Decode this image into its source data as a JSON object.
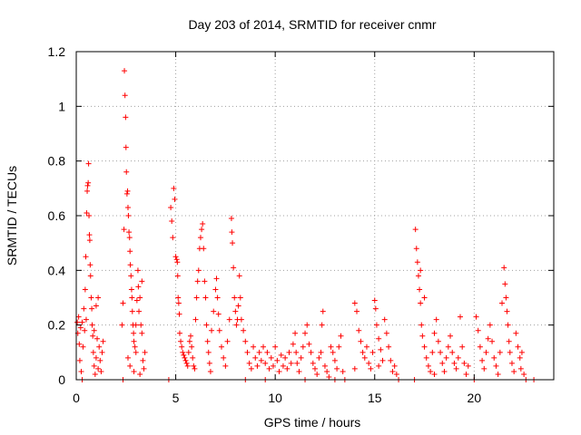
{
  "chart_data": {
    "type": "scatter",
    "title": "Day 203 of 2014, SRMTID for receiver cnmr",
    "xlabel": "GPS time / hours",
    "ylabel": "SRMTID / TECUs",
    "xlim": [
      0,
      24
    ],
    "ylim": [
      0,
      1.2
    ],
    "xticks": [
      0,
      5,
      10,
      15,
      20
    ],
    "xtick_labels": [
      "0",
      "5",
      "10",
      "15",
      "20"
    ],
    "yticks": [
      0,
      0.2,
      0.4,
      0.6,
      0.8,
      1.0,
      1.2
    ],
    "ytick_labels": [
      "0",
      "0.2",
      "0.4",
      "0.6",
      "0.8",
      "1",
      "1.2"
    ],
    "grid": true,
    "marker": "+",
    "marker_color": "#ff0000",
    "series": [
      {
        "name": "SRMTID",
        "points": [
          [
            0.05,
            0.21
          ],
          [
            0.08,
            0.17
          ],
          [
            0.12,
            0.23
          ],
          [
            0.15,
            0.13
          ],
          [
            0.18,
            0.07
          ],
          [
            0.22,
            0.19
          ],
          [
            0.25,
            0.03
          ],
          [
            0.3,
            0.21
          ],
          [
            0.34,
            0.12
          ],
          [
            0.38,
            0.26
          ],
          [
            0.42,
            0.18
          ],
          [
            0.45,
            0.33
          ],
          [
            0.48,
            0.45
          ],
          [
            0.5,
            0.22
          ],
          [
            0.52,
            0.61
          ],
          [
            0.55,
            0.69
          ],
          [
            0.57,
            0.71
          ],
          [
            0.6,
            0.72
          ],
          [
            0.62,
            0.79
          ],
          [
            0.64,
            0.6
          ],
          [
            0.66,
            0.53
          ],
          [
            0.68,
            0.51
          ],
          [
            0.7,
            0.42
          ],
          [
            0.72,
            0.38
          ],
          [
            0.75,
            0.3
          ],
          [
            0.78,
            0.26
          ],
          [
            0.8,
            0.2
          ],
          [
            0.83,
            0.16
          ],
          [
            0.86,
            0.1
          ],
          [
            0.9,
            0.05
          ],
          [
            0.95,
            0.02
          ],
          [
            1.0,
            0.08
          ],
          [
            1.05,
            0.15
          ],
          [
            1.1,
            0.04
          ],
          [
            1.15,
            0.12
          ],
          [
            1.2,
            0.07
          ],
          [
            1.25,
            0.03
          ],
          [
            1.3,
            0.1
          ],
          [
            1.35,
            0.14
          ],
          [
            1.0,
            0.27
          ],
          [
            1.1,
            0.3
          ],
          [
            0.9,
            0.18
          ],
          [
            0.3,
            0.0
          ],
          [
            2.35,
            0.0
          ],
          [
            2.3,
            0.2
          ],
          [
            2.35,
            0.28
          ],
          [
            2.4,
            0.55
          ],
          [
            2.42,
            1.13
          ],
          [
            2.45,
            1.04
          ],
          [
            2.48,
            0.96
          ],
          [
            2.5,
            0.85
          ],
          [
            2.52,
            0.76
          ],
          [
            2.55,
            0.68
          ],
          [
            2.58,
            0.69
          ],
          [
            2.6,
            0.63
          ],
          [
            2.62,
            0.6
          ],
          [
            2.65,
            0.54
          ],
          [
            2.68,
            0.52
          ],
          [
            2.7,
            0.47
          ],
          [
            2.72,
            0.42
          ],
          [
            2.75,
            0.38
          ],
          [
            2.78,
            0.33
          ],
          [
            2.8,
            0.3
          ],
          [
            2.82,
            0.25
          ],
          [
            2.85,
            0.2
          ],
          [
            2.88,
            0.17
          ],
          [
            2.9,
            0.14
          ],
          [
            2.95,
            0.12
          ],
          [
            3.0,
            0.1
          ],
          [
            3.05,
            0.29
          ],
          [
            3.1,
            0.4
          ],
          [
            3.12,
            0.34
          ],
          [
            3.15,
            0.25
          ],
          [
            3.2,
            0.3
          ],
          [
            3.25,
            0.2
          ],
          [
            3.3,
            0.17
          ],
          [
            3.35,
            0.07
          ],
          [
            3.4,
            0.04
          ],
          [
            3.45,
            0.1
          ],
          [
            2.6,
            0.08
          ],
          [
            2.7,
            0.05
          ],
          [
            2.9,
            0.03
          ],
          [
            3.2,
            0.02
          ],
          [
            3.3,
            0.36
          ],
          [
            3.0,
            0.2
          ],
          [
            4.65,
            0.0
          ],
          [
            4.75,
            0.63
          ],
          [
            4.8,
            0.58
          ],
          [
            4.85,
            0.52
          ],
          [
            4.9,
            0.7
          ],
          [
            4.95,
            0.66
          ],
          [
            5.0,
            0.45
          ],
          [
            5.05,
            0.44
          ],
          [
            5.08,
            0.43
          ],
          [
            5.1,
            0.38
          ],
          [
            5.12,
            0.3
          ],
          [
            5.15,
            0.28
          ],
          [
            5.18,
            0.24
          ],
          [
            5.2,
            0.17
          ],
          [
            5.25,
            0.14
          ],
          [
            5.3,
            0.12
          ],
          [
            5.35,
            0.1
          ],
          [
            5.4,
            0.09
          ],
          [
            5.45,
            0.08
          ],
          [
            5.5,
            0.07
          ],
          [
            5.55,
            0.06
          ],
          [
            5.6,
            0.05
          ],
          [
            5.65,
            0.1
          ],
          [
            5.7,
            0.14
          ],
          [
            5.75,
            0.16
          ],
          [
            5.8,
            0.12
          ],
          [
            5.85,
            0.08
          ],
          [
            5.9,
            0.05
          ],
          [
            5.95,
            0.04
          ],
          [
            6.0,
            0.22
          ],
          [
            6.05,
            0.3
          ],
          [
            6.1,
            0.36
          ],
          [
            6.15,
            0.4
          ],
          [
            6.2,
            0.48
          ],
          [
            6.25,
            0.52
          ],
          [
            6.3,
            0.55
          ],
          [
            6.35,
            0.57
          ],
          [
            6.4,
            0.48
          ],
          [
            6.45,
            0.36
          ],
          [
            6.5,
            0.3
          ],
          [
            6.55,
            0.2
          ],
          [
            6.6,
            0.14
          ],
          [
            6.65,
            0.1
          ],
          [
            6.7,
            0.06
          ],
          [
            6.75,
            0.03
          ],
          [
            6.8,
            0.18
          ],
          [
            6.9,
            0.25
          ],
          [
            7.0,
            0.33
          ],
          [
            7.05,
            0.37
          ],
          [
            7.1,
            0.3
          ],
          [
            7.15,
            0.24
          ],
          [
            7.2,
            0.18
          ],
          [
            7.3,
            0.12
          ],
          [
            7.4,
            0.08
          ],
          [
            7.5,
            0.05
          ],
          [
            7.6,
            0.14
          ],
          [
            7.7,
            0.22
          ],
          [
            7.8,
            0.59
          ],
          [
            7.82,
            0.54
          ],
          [
            7.85,
            0.5
          ],
          [
            7.9,
            0.41
          ],
          [
            7.95,
            0.3
          ],
          [
            8.0,
            0.25
          ],
          [
            8.05,
            0.2
          ],
          [
            8.1,
            0.22
          ],
          [
            8.15,
            0.27
          ],
          [
            8.2,
            0.38
          ],
          [
            8.25,
            0.3
          ],
          [
            8.3,
            0.22
          ],
          [
            8.4,
            0.18
          ],
          [
            8.5,
            0.14
          ],
          [
            8.6,
            0.1
          ],
          [
            8.7,
            0.06
          ],
          [
            8.8,
            0.04
          ],
          [
            8.9,
            0.12
          ],
          [
            9.0,
            0.08
          ],
          [
            9.1,
            0.05
          ],
          [
            9.2,
            0.1
          ],
          [
            9.3,
            0.07
          ],
          [
            9.4,
            0.12
          ],
          [
            9.5,
            0.06
          ],
          [
            9.6,
            0.1
          ],
          [
            9.7,
            0.04
          ],
          [
            9.8,
            0.08
          ],
          [
            9.9,
            0.05
          ],
          [
            10.0,
            0.12
          ],
          [
            10.1,
            0.07
          ],
          [
            10.2,
            0.03
          ],
          [
            10.3,
            0.09
          ],
          [
            10.4,
            0.05
          ],
          [
            10.5,
            0.08
          ],
          [
            10.6,
            0.04
          ],
          [
            10.7,
            0.1
          ],
          [
            10.8,
            0.06
          ],
          [
            10.9,
            0.13
          ],
          [
            11.0,
            0.17
          ],
          [
            11.05,
            0.1
          ],
          [
            11.1,
            0.06
          ],
          [
            11.2,
            0.03
          ],
          [
            11.3,
            0.08
          ],
          [
            11.4,
            0.12
          ],
          [
            11.5,
            0.17
          ],
          [
            11.6,
            0.2
          ],
          [
            11.7,
            0.13
          ],
          [
            11.8,
            0.1
          ],
          [
            11.9,
            0.06
          ],
          [
            12.0,
            0.04
          ],
          [
            12.1,
            0.02
          ],
          [
            12.2,
            0.08
          ],
          [
            12.3,
            0.1
          ],
          [
            12.35,
            0.2
          ],
          [
            12.4,
            0.25
          ],
          [
            12.5,
            0.05
          ],
          [
            12.6,
            0.03
          ],
          [
            12.7,
            0.01
          ],
          [
            12.8,
            0.12
          ],
          [
            12.9,
            0.1
          ],
          [
            13.0,
            0.07
          ],
          [
            13.1,
            0.04
          ],
          [
            13.2,
            0.12
          ],
          [
            13.3,
            0.16
          ],
          [
            13.4,
            0.03
          ],
          [
            13.5,
            0.0
          ],
          [
            14.0,
            0.28
          ],
          [
            14.1,
            0.25
          ],
          [
            14.2,
            0.18
          ],
          [
            14.3,
            0.14
          ],
          [
            14.4,
            0.1
          ],
          [
            14.5,
            0.08
          ],
          [
            14.6,
            0.12
          ],
          [
            14.7,
            0.06
          ],
          [
            14.8,
            0.04
          ],
          [
            14.9,
            0.1
          ],
          [
            15.0,
            0.29
          ],
          [
            15.05,
            0.26
          ],
          [
            15.1,
            0.2
          ],
          [
            15.2,
            0.15
          ],
          [
            15.3,
            0.11
          ],
          [
            15.4,
            0.07
          ],
          [
            15.5,
            0.22
          ],
          [
            15.6,
            0.17
          ],
          [
            15.7,
            0.12
          ],
          [
            15.8,
            0.07
          ],
          [
            15.9,
            0.03
          ],
          [
            16.0,
            0.05
          ],
          [
            16.1,
            0.02
          ],
          [
            16.2,
            0.0
          ],
          [
            8.5,
            0.0
          ],
          [
            9.5,
            0.0
          ],
          [
            11.5,
            0.0
          ],
          [
            13.0,
            0.0
          ],
          [
            14.0,
            0.04
          ],
          [
            15.2,
            0.05
          ],
          [
            17.0,
            0.0
          ],
          [
            17.05,
            0.55
          ],
          [
            17.1,
            0.48
          ],
          [
            17.15,
            0.43
          ],
          [
            17.2,
            0.38
          ],
          [
            17.25,
            0.33
          ],
          [
            17.3,
            0.28
          ],
          [
            17.35,
            0.2
          ],
          [
            17.4,
            0.16
          ],
          [
            17.5,
            0.12
          ],
          [
            17.6,
            0.08
          ],
          [
            17.7,
            0.05
          ],
          [
            17.8,
            0.03
          ],
          [
            17.9,
            0.1
          ],
          [
            18.0,
            0.17
          ],
          [
            18.1,
            0.22
          ],
          [
            18.2,
            0.14
          ],
          [
            18.3,
            0.1
          ],
          [
            18.4,
            0.06
          ],
          [
            18.5,
            0.03
          ],
          [
            18.6,
            0.08
          ],
          [
            18.7,
            0.12
          ],
          [
            18.8,
            0.16
          ],
          [
            18.9,
            0.1
          ],
          [
            19.0,
            0.06
          ],
          [
            19.1,
            0.04
          ],
          [
            19.2,
            0.08
          ],
          [
            19.3,
            0.23
          ],
          [
            19.4,
            0.12
          ],
          [
            19.5,
            0.06
          ],
          [
            19.6,
            0.02
          ],
          [
            19.7,
            0.05
          ],
          [
            17.3,
            0.4
          ],
          [
            17.5,
            0.3
          ],
          [
            18.0,
            0.02
          ],
          [
            20.0,
            0.0
          ],
          [
            20.1,
            0.23
          ],
          [
            20.2,
            0.18
          ],
          [
            20.3,
            0.12
          ],
          [
            20.4,
            0.07
          ],
          [
            20.5,
            0.04
          ],
          [
            20.6,
            0.1
          ],
          [
            20.7,
            0.15
          ],
          [
            20.8,
            0.2
          ],
          [
            20.9,
            0.14
          ],
          [
            21.0,
            0.08
          ],
          [
            21.1,
            0.05
          ],
          [
            21.2,
            0.02
          ],
          [
            21.3,
            0.1
          ],
          [
            21.4,
            0.28
          ],
          [
            21.5,
            0.41
          ],
          [
            21.55,
            0.35
          ],
          [
            21.6,
            0.3
          ],
          [
            21.65,
            0.25
          ],
          [
            21.7,
            0.2
          ],
          [
            21.75,
            0.14
          ],
          [
            21.8,
            0.1
          ],
          [
            21.9,
            0.06
          ],
          [
            22.0,
            0.03
          ],
          [
            22.1,
            0.17
          ],
          [
            22.2,
            0.12
          ],
          [
            22.3,
            0.08
          ],
          [
            22.35,
            0.04
          ],
          [
            22.4,
            0.1
          ],
          [
            22.5,
            0.02
          ],
          [
            22.6,
            0.0
          ],
          [
            23.0,
            0.0
          ]
        ]
      }
    ]
  }
}
